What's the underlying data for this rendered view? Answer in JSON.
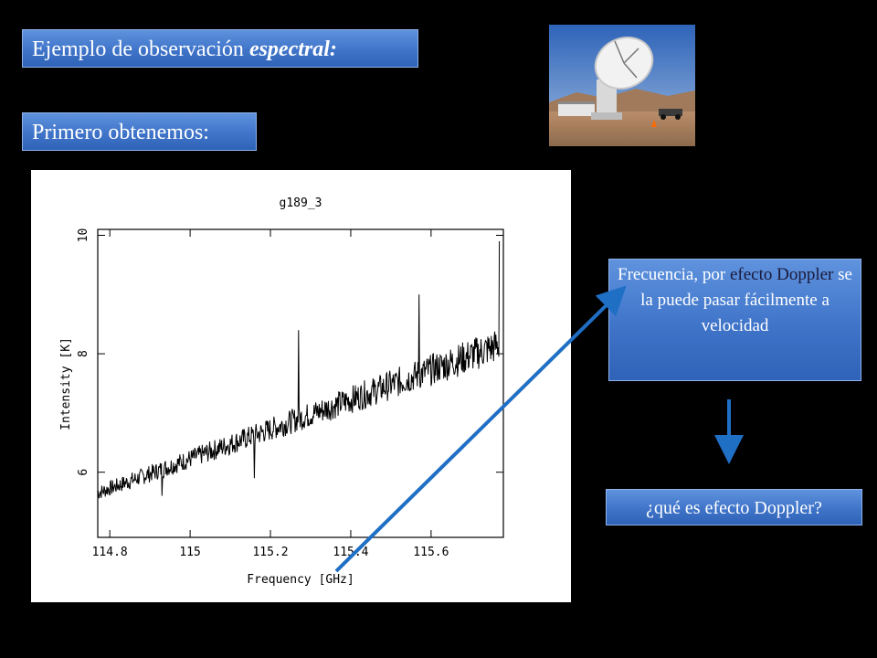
{
  "slide": {
    "title_plain": "Ejemplo de observación ",
    "title_emph": "espectral:",
    "subtitle": "Primero obtenemos:",
    "note": {
      "part1": "Frecuencia, por ",
      "part2": "efecto Doppler",
      "part3": " se la puede pasar fácilmente a velocidad"
    },
    "question": "¿qué es efecto Doppler?"
  },
  "colors": {
    "box_blue": "#4a7fd1",
    "arrow_blue": "#1f6fc5",
    "background": "#000000"
  },
  "chart_data": {
    "type": "line",
    "title": "g189_3",
    "xlabel": "Frequency  [GHz]",
    "ylabel": "Intensity [K]",
    "xlim": [
      114.77,
      115.78
    ],
    "ylim": [
      4.9,
      10.1
    ],
    "xticks": [
      114.8,
      115,
      115.2,
      115.4,
      115.6
    ],
    "xtick_labels": [
      "114.8",
      "115",
      "115.2",
      "115.4",
      "115.6"
    ],
    "yticks": [
      6,
      8,
      10
    ],
    "ytick_labels": [
      "6",
      "8",
      "10"
    ],
    "baseline_start": [
      114.77,
      5.65
    ],
    "baseline_end": [
      115.77,
      8.15
    ],
    "spikes": [
      {
        "x": 115.27,
        "y": 8.4
      },
      {
        "x": 115.57,
        "y": 9.0
      },
      {
        "x": 115.77,
        "y": 9.9
      },
      {
        "x": 115.16,
        "y": 5.9
      },
      {
        "x": 114.93,
        "y": 5.6
      }
    ],
    "grid": false
  }
}
